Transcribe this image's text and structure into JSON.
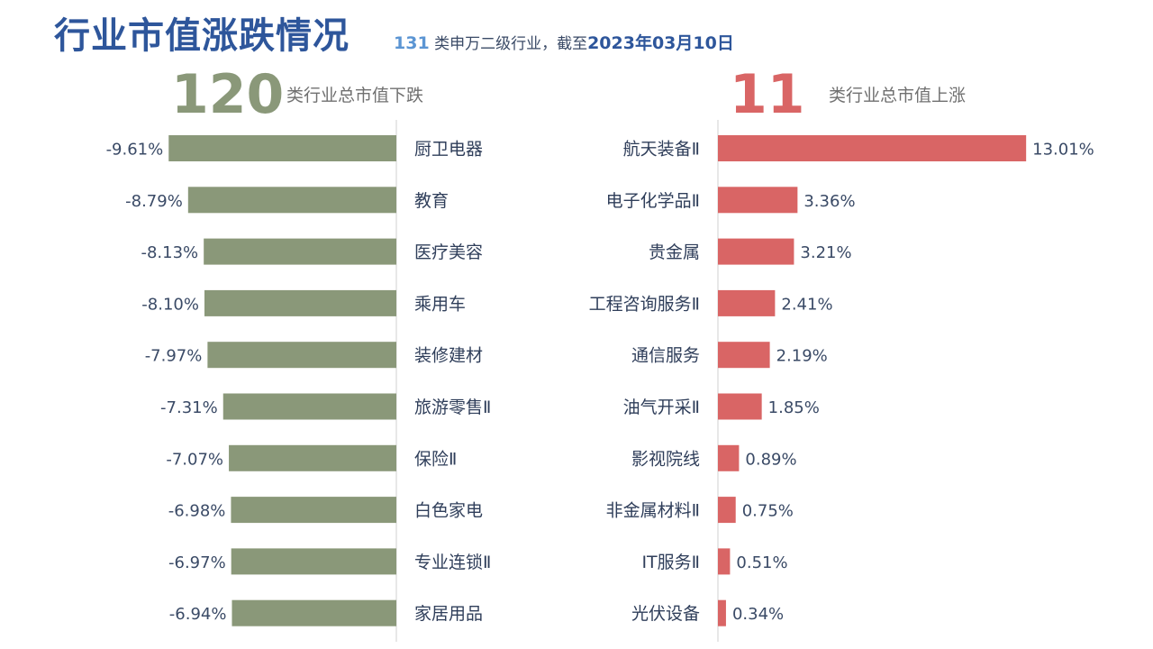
{
  "header": {
    "title": "行业市值涨跌情况",
    "subtitle_count": "131",
    "subtitle_mid": " 类申万二级行业，截至",
    "subtitle_date": "2023年03月10日"
  },
  "down_summary": {
    "count": "120",
    "label": "类行业总市值下跌"
  },
  "up_summary": {
    "count": "11",
    "label": "类行业总市值上涨"
  },
  "colors": {
    "down": "#8a9879",
    "up": "#d96565",
    "axis": "#d0d0d0",
    "title": "#2e569b"
  },
  "chart_data": [
    {
      "type": "bar",
      "orientation": "horizontal",
      "categories": [
        "厨卫电器",
        "教育",
        "医疗美容",
        "乘用车",
        "装修建材",
        "旅游零售Ⅱ",
        "保险Ⅱ",
        "白色家电",
        "专业连锁Ⅱ",
        "家居用品"
      ],
      "values": [
        -9.61,
        -8.79,
        -8.13,
        -8.1,
        -7.97,
        -7.31,
        -7.07,
        -6.98,
        -6.97,
        -6.94
      ],
      "labels": [
        "-9.61%",
        "-8.79%",
        "-8.13%",
        "-8.10%",
        "-7.97%",
        "-7.31%",
        "-7.07%",
        "-6.98%",
        "-6.97%",
        "-6.94%"
      ],
      "unit": "%"
    },
    {
      "type": "bar",
      "orientation": "horizontal",
      "categories": [
        "航天装备Ⅱ",
        "电子化学品Ⅱ",
        "贵金属",
        "工程咨询服务Ⅱ",
        "通信服务",
        "油气开采Ⅱ",
        "影视院线",
        "非金属材料Ⅱ",
        "IT服务Ⅱ",
        "光伏设备"
      ],
      "values": [
        13.01,
        3.36,
        3.21,
        2.41,
        2.19,
        1.85,
        0.89,
        0.75,
        0.51,
        0.34
      ],
      "labels": [
        "13.01%",
        "3.36%",
        "3.21%",
        "2.41%",
        "2.19%",
        "1.85%",
        "0.89%",
        "0.75%",
        "0.51%",
        "0.34%"
      ],
      "unit": "%"
    }
  ]
}
